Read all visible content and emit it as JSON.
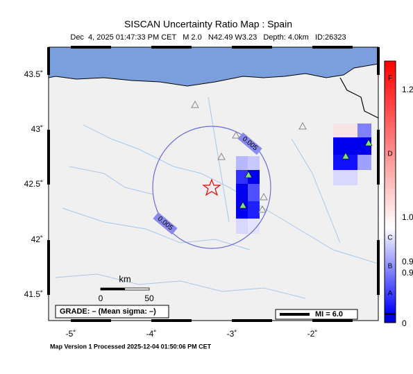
{
  "header": {
    "title": "SISCAN Uncertainty Ratio Map : Spain",
    "subtitle": "Dec  4, 2025 01:47:33 PM CET   M 2.0   N42.49 W3.23   Depth: 4.0km   ID:26323"
  },
  "map": {
    "lat_labels": [
      "43.5˚",
      "43˚",
      "42.5˚",
      "42˚",
      "41.5˚"
    ],
    "lon_labels": [
      "-5˚",
      "-4˚",
      "-3˚",
      "-2˚"
    ],
    "contour_labels": [
      "0.005",
      "0.005"
    ],
    "scale": {
      "unit": "km",
      "start": "0",
      "end": "50"
    },
    "grade": "GRADE: – (Mean sigma: –)",
    "magnitude": "MI = 6.0"
  },
  "colorbar": {
    "letters": [
      "F",
      "D",
      "C",
      "B",
      "A"
    ],
    "labels": [
      "1.2",
      "1.0",
      "0.9",
      "0.9",
      "0"
    ]
  },
  "footer": "Map Version 1 Processed 2025-12-04 01:50:06 PM CET"
}
